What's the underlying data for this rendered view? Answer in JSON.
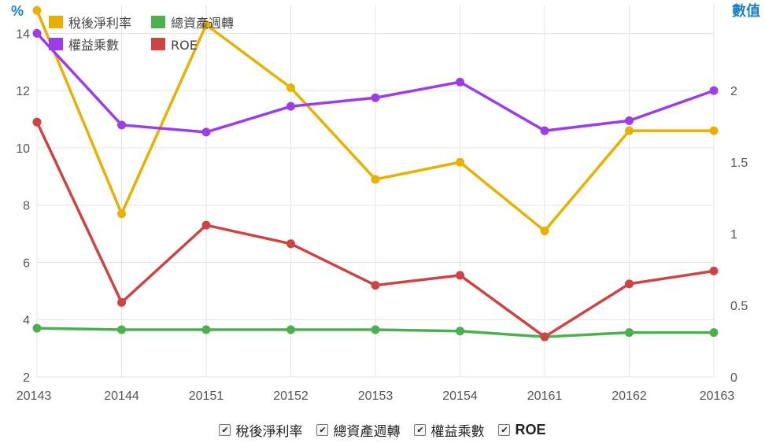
{
  "chart_data": {
    "type": "line",
    "categories": [
      "20143",
      "20144",
      "20151",
      "20152",
      "20153",
      "20154",
      "20161",
      "20162",
      "20163"
    ],
    "left_axis": {
      "unit": "%",
      "ticks": [
        2,
        4,
        6,
        8,
        10,
        12,
        14
      ],
      "range": [
        2,
        15
      ]
    },
    "right_axis": {
      "unit": "數值",
      "ticks": [
        "0",
        "0.5",
        "1",
        "1.5",
        "2"
      ],
      "range": [
        0,
        2.6
      ]
    },
    "grid": true,
    "legend_position": "top-left",
    "series": [
      {
        "name": "稅後淨利率",
        "axis": "left",
        "color": "#e8b100",
        "values": [
          14.8,
          7.7,
          14.3,
          12.1,
          8.9,
          9.5,
          7.1,
          10.6,
          10.6
        ]
      },
      {
        "name": "總資產週轉",
        "axis": "left",
        "color": "#4caf50",
        "values": [
          3.7,
          3.65,
          3.65,
          3.65,
          3.65,
          3.6,
          3.4,
          3.55,
          3.55
        ]
      },
      {
        "name": "權益乘數",
        "axis": "right",
        "color": "#9c3de8",
        "values": [
          2.4,
          1.76,
          1.71,
          1.89,
          1.95,
          2.06,
          1.72,
          1.79,
          2.0
        ]
      },
      {
        "name": "ROE",
        "axis": "left",
        "color": "#cc4444",
        "values": [
          10.9,
          4.6,
          7.3,
          6.65,
          5.2,
          5.55,
          3.4,
          5.25,
          5.7
        ]
      }
    ]
  },
  "bottom_legend": {
    "checkbox_mark": "✔",
    "items": [
      {
        "label": "稅後淨利率",
        "checked": true
      },
      {
        "label": "總資產週轉",
        "checked": true
      },
      {
        "label": "權益乘數",
        "checked": true
      },
      {
        "label": "ROE",
        "checked": true
      }
    ]
  }
}
